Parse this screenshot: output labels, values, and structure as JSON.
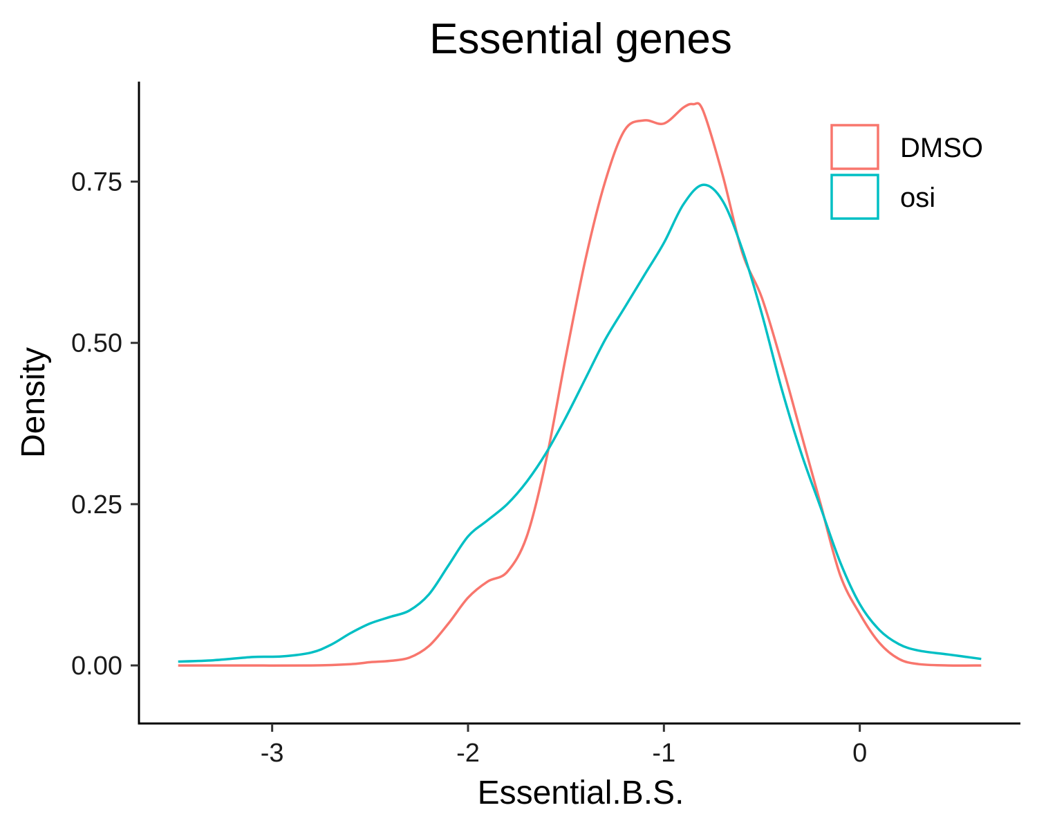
{
  "chart_data": {
    "type": "area",
    "title": "Essential genes",
    "xlabel": "Essential.B.S.",
    "ylabel": "Density",
    "xlim": [
      -3.68,
      0.82
    ],
    "ylim": [
      -0.09,
      0.905
    ],
    "x_ticks": [
      -3,
      -2,
      -1,
      0
    ],
    "x_tick_labels": [
      "-3",
      "-2",
      "-1",
      "0"
    ],
    "y_ticks": [
      0,
      0.25,
      0.5,
      0.75
    ],
    "y_tick_labels": [
      "0.00",
      "0.25",
      "0.50",
      "0.75"
    ],
    "grid": false,
    "legend_position": "top-right",
    "series": [
      {
        "name": "DMSO",
        "color": "#F8766D",
        "points": [
          [
            -3.48,
            0.0
          ],
          [
            -3.2,
            0.0
          ],
          [
            -2.8,
            0.0
          ],
          [
            -2.6,
            0.002
          ],
          [
            -2.5,
            0.005
          ],
          [
            -2.4,
            0.007
          ],
          [
            -2.3,
            0.012
          ],
          [
            -2.2,
            0.03
          ],
          [
            -2.1,
            0.065
          ],
          [
            -2.0,
            0.105
          ],
          [
            -1.9,
            0.13
          ],
          [
            -1.8,
            0.145
          ],
          [
            -1.7,
            0.2
          ],
          [
            -1.6,
            0.32
          ],
          [
            -1.5,
            0.48
          ],
          [
            -1.4,
            0.63
          ],
          [
            -1.3,
            0.75
          ],
          [
            -1.2,
            0.83
          ],
          [
            -1.1,
            0.845
          ],
          [
            -1.0,
            0.84
          ],
          [
            -0.9,
            0.865
          ],
          [
            -0.85,
            0.87
          ],
          [
            -0.8,
            0.86
          ],
          [
            -0.7,
            0.76
          ],
          [
            -0.6,
            0.64
          ],
          [
            -0.5,
            0.57
          ],
          [
            -0.4,
            0.47
          ],
          [
            -0.3,
            0.36
          ],
          [
            -0.2,
            0.25
          ],
          [
            -0.1,
            0.14
          ],
          [
            0.0,
            0.08
          ],
          [
            0.1,
            0.035
          ],
          [
            0.2,
            0.01
          ],
          [
            0.3,
            0.002
          ],
          [
            0.45,
            0.0
          ],
          [
            0.62,
            0.0
          ]
        ]
      },
      {
        "name": "osi",
        "color": "#00BFC4",
        "points": [
          [
            -3.48,
            0.006
          ],
          [
            -3.3,
            0.008
          ],
          [
            -3.1,
            0.013
          ],
          [
            -2.95,
            0.014
          ],
          [
            -2.8,
            0.02
          ],
          [
            -2.7,
            0.032
          ],
          [
            -2.6,
            0.05
          ],
          [
            -2.5,
            0.065
          ],
          [
            -2.4,
            0.075
          ],
          [
            -2.3,
            0.085
          ],
          [
            -2.2,
            0.11
          ],
          [
            -2.1,
            0.155
          ],
          [
            -2.0,
            0.2
          ],
          [
            -1.9,
            0.225
          ],
          [
            -1.8,
            0.25
          ],
          [
            -1.7,
            0.285
          ],
          [
            -1.6,
            0.33
          ],
          [
            -1.5,
            0.385
          ],
          [
            -1.4,
            0.445
          ],
          [
            -1.3,
            0.505
          ],
          [
            -1.2,
            0.555
          ],
          [
            -1.1,
            0.605
          ],
          [
            -1.0,
            0.655
          ],
          [
            -0.9,
            0.715
          ],
          [
            -0.8,
            0.745
          ],
          [
            -0.7,
            0.72
          ],
          [
            -0.6,
            0.645
          ],
          [
            -0.5,
            0.545
          ],
          [
            -0.4,
            0.43
          ],
          [
            -0.3,
            0.33
          ],
          [
            -0.2,
            0.245
          ],
          [
            -0.1,
            0.16
          ],
          [
            0.0,
            0.095
          ],
          [
            0.1,
            0.055
          ],
          [
            0.2,
            0.033
          ],
          [
            0.3,
            0.023
          ],
          [
            0.45,
            0.017
          ],
          [
            0.62,
            0.01
          ]
        ]
      }
    ]
  }
}
